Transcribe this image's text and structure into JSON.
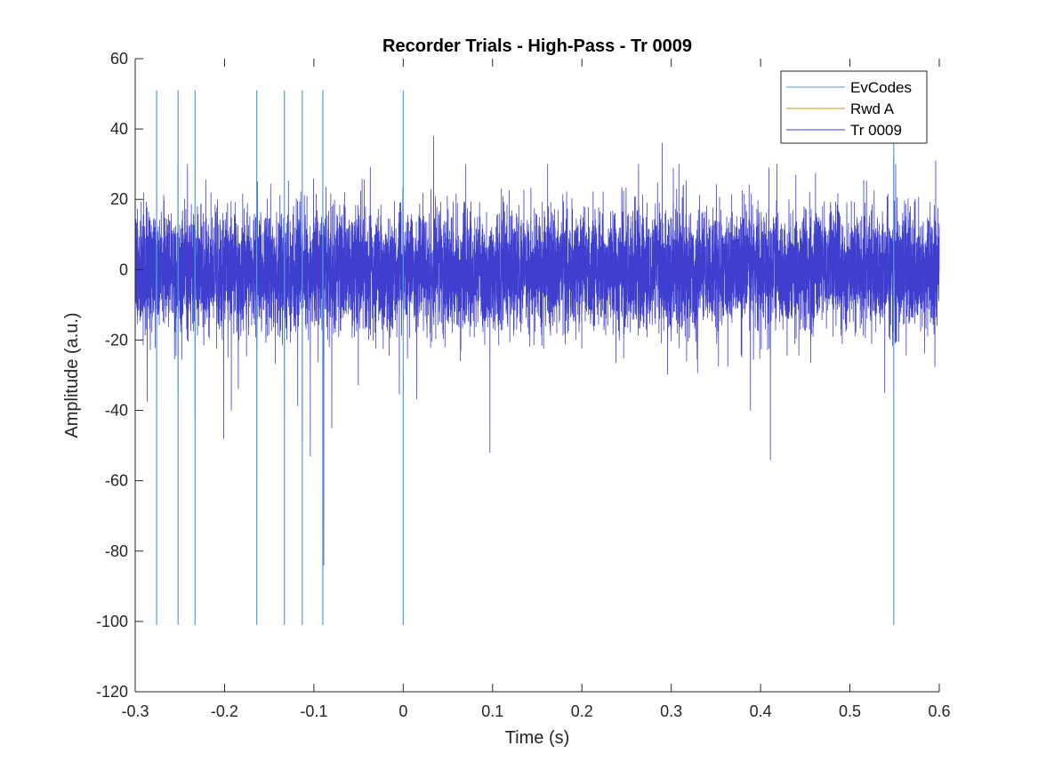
{
  "chart_data": {
    "type": "line",
    "title": "Recorder Trials - High-Pass - Tr 0009",
    "xlabel": "Time (s)",
    "ylabel": "Amplitude (a.u.)",
    "xlim": [
      -0.3,
      0.6
    ],
    "ylim": [
      -120,
      60
    ],
    "xticks": [
      -0.3,
      -0.2,
      -0.1,
      0,
      0.1,
      0.2,
      0.3,
      0.4,
      0.5,
      0.6
    ],
    "xtick_labels": [
      "-0.3",
      "-0.2",
      "-0.1",
      "0",
      "0.1",
      "0.2",
      "0.3",
      "0.4",
      "0.5",
      "0.6"
    ],
    "yticks": [
      60,
      40,
      20,
      0,
      -20,
      -40,
      -60,
      -80,
      -100,
      -120
    ],
    "ytick_labels": [
      "60",
      "40",
      "20",
      "0",
      "-20",
      "-40",
      "-60",
      "-80",
      "-100",
      "-120"
    ],
    "grid": false,
    "legend_position": "top-right",
    "legend": [
      "EvCodes",
      "Rwd A",
      "Tr 0009"
    ],
    "series": [
      {
        "name": "EvCodes",
        "color": "#4f9fd8",
        "style": "vertical-event-lines",
        "times": [
          -0.276,
          -0.252,
          -0.233,
          -0.164,
          -0.133,
          -0.113,
          -0.09,
          0.0,
          0.549
        ],
        "y_range": [
          -101,
          51
        ]
      },
      {
        "name": "Rwd A",
        "color": "#c8961e",
        "style": "line",
        "times": [],
        "values": []
      },
      {
        "name": "Tr 0009",
        "color": "#3f3fcf",
        "style": "dense-noise",
        "baseline_std": 8.5,
        "x_range": [
          -0.3,
          0.6
        ],
        "samples": 9000,
        "notable_peaks": [
          {
            "x": -0.276,
            "y": -44
          },
          {
            "x": -0.252,
            "y": -36
          },
          {
            "x": -0.233,
            "y": -42
          },
          {
            "x": -0.201,
            "y": -48
          },
          {
            "x": -0.164,
            "y": -72
          },
          {
            "x": -0.133,
            "y": -42
          },
          {
            "x": -0.113,
            "y": -49
          },
          {
            "x": -0.104,
            "y": -53
          },
          {
            "x": -0.089,
            "y": -84
          },
          {
            "x": -0.08,
            "y": -45
          },
          {
            "x": 0.034,
            "y": 38
          },
          {
            "x": 0.097,
            "y": -52
          },
          {
            "x": 0.29,
            "y": 36
          },
          {
            "x": 0.411,
            "y": -54
          },
          {
            "x": 0.549,
            "y": 32
          },
          {
            "x": 0.539,
            "y": -35
          },
          {
            "x": 0.596,
            "y": 31
          }
        ]
      }
    ]
  }
}
